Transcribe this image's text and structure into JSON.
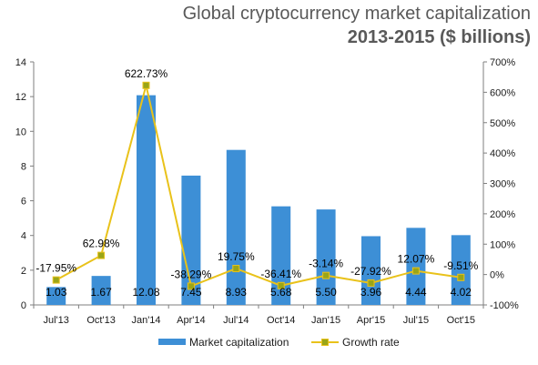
{
  "header": {
    "title": "Global cryptocurrency market capitalization",
    "subtitle": "2013-2015 ($ billions)"
  },
  "chart_data": {
    "type": "bar",
    "categories": [
      "Jul'13",
      "Oct'13",
      "Jan'14",
      "Apr'14",
      "Jul'14",
      "Oct'14",
      "Jan'15",
      "Apr'15",
      "Jul'15",
      "Oct'15"
    ],
    "series": [
      {
        "name": "Market capitalization",
        "type": "bar",
        "axis": "left",
        "color": "#3d8fd6",
        "values": [
          1.03,
          1.67,
          12.08,
          7.45,
          8.93,
          5.68,
          5.5,
          3.96,
          4.44,
          4.02
        ],
        "labels": [
          "1.03",
          "1.67",
          "12.08",
          "7.45",
          "8.93",
          "5.68",
          "5.50",
          "3.96",
          "4.44",
          "4.02"
        ]
      },
      {
        "name": "Growth rate",
        "type": "line",
        "axis": "right",
        "color": "#e9c21a",
        "marker_color": "#9aa518",
        "values": [
          -17.95,
          62.98,
          622.73,
          -38.29,
          19.75,
          -36.41,
          -3.14,
          -27.92,
          12.07,
          -9.51
        ],
        "labels": [
          "-17.95%",
          "62.98%",
          "622.73%",
          "-38.29%",
          "19.75%",
          "-36.41%",
          "-3.14%",
          "-27.92%",
          "12.07%",
          "-9.51%"
        ]
      }
    ],
    "y_left": {
      "min": 0,
      "max": 14,
      "ticks": [
        0,
        2,
        4,
        6,
        8,
        10,
        12,
        14
      ]
    },
    "y_right": {
      "min": -100,
      "max": 700,
      "ticks": [
        -100,
        0,
        100,
        200,
        300,
        400,
        500,
        600,
        700
      ],
      "tick_labels": [
        "-100%",
        "0%",
        "100%",
        "200%",
        "300%",
        "400%",
        "500%",
        "600%",
        "700%"
      ]
    },
    "grid": false,
    "legend_position": "bottom"
  }
}
